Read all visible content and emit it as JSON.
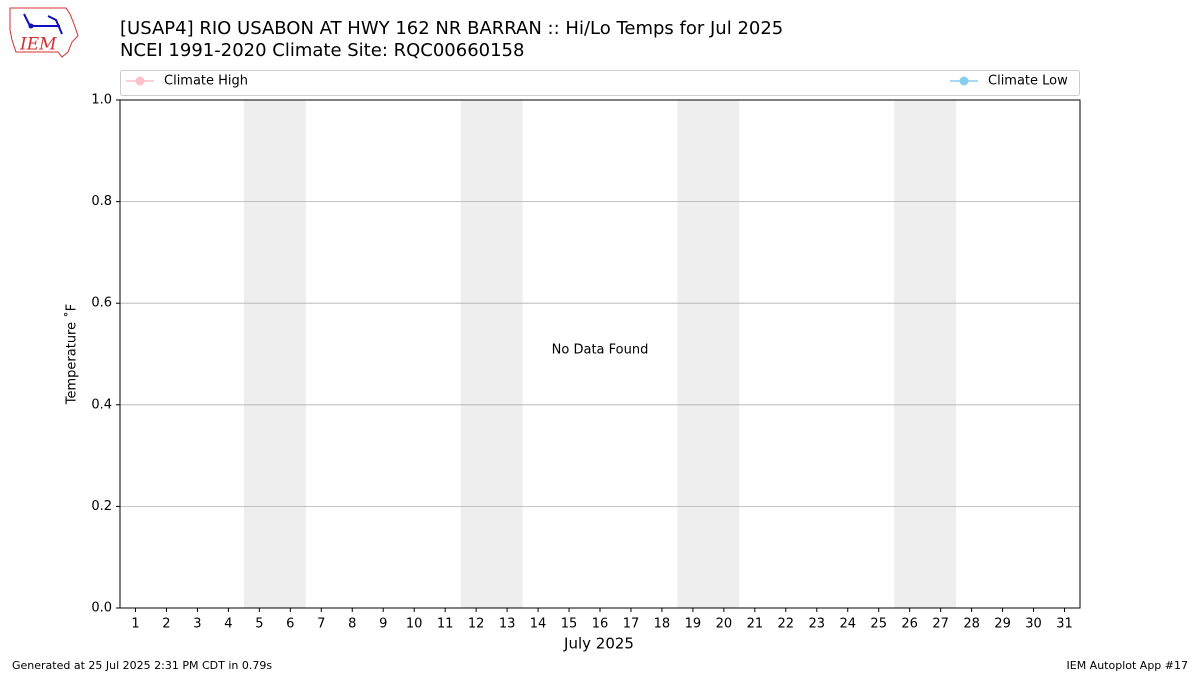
{
  "chart_data": {
    "type": "line",
    "logo_text": "IEM",
    "title": "[USAP4] RIO USABON AT HWY 162 NR BARRAN :: Hi/Lo Temps for Jul 2025",
    "subtitle": "NCEI 1991-2020 Climate Site: RQC00660158",
    "x_label": "July 2025",
    "y_label": "Temperature ˚F",
    "annotation": "No Data Found",
    "footer_left": "Generated at 25 Jul 2025 2:31 PM CDT in 0.79s",
    "footer_right": "IEM Autoplot App #17",
    "x": [
      1,
      2,
      3,
      4,
      5,
      6,
      7,
      8,
      9,
      10,
      11,
      12,
      13,
      14,
      15,
      16,
      17,
      18,
      19,
      20,
      21,
      22,
      23,
      24,
      25,
      26,
      27,
      28,
      29,
      30,
      31
    ],
    "series": [
      {
        "name": "Climate High",
        "color": "pink",
        "values": [
          null,
          null,
          null,
          null,
          null,
          null,
          null,
          null,
          null,
          null,
          null,
          null,
          null,
          null,
          null,
          null,
          null,
          null,
          null,
          null,
          null,
          null,
          null,
          null,
          null,
          null,
          null,
          null,
          null,
          null,
          null
        ]
      },
      {
        "name": "Climate Low",
        "color": "skyblue",
        "values": [
          null,
          null,
          null,
          null,
          null,
          null,
          null,
          null,
          null,
          null,
          null,
          null,
          null,
          null,
          null,
          null,
          null,
          null,
          null,
          null,
          null,
          null,
          null,
          null,
          null,
          null,
          null,
          null,
          null,
          null,
          null
        ]
      }
    ],
    "shaded_spans": [
      [
        4.5,
        6.5
      ],
      [
        11.5,
        13.5
      ],
      [
        18.5,
        20.5
      ],
      [
        25.5,
        27.5
      ]
    ],
    "shade_color": "#eeeeee",
    "xlim": [
      0.5,
      31.5
    ],
    "xticks": [
      1,
      2,
      3,
      4,
      5,
      6,
      7,
      8,
      9,
      10,
      11,
      12,
      13,
      14,
      15,
      16,
      17,
      18,
      19,
      20,
      21,
      22,
      23,
      24,
      25,
      26,
      27,
      28,
      29,
      30,
      31
    ],
    "ylim": [
      0,
      1
    ],
    "yticks": [
      {
        "value": 0,
        "label": "0.0"
      },
      0.2,
      0.4,
      0.6,
      0.8,
      {
        "value": 1,
        "label": "1.0"
      }
    ],
    "grid": true
  }
}
